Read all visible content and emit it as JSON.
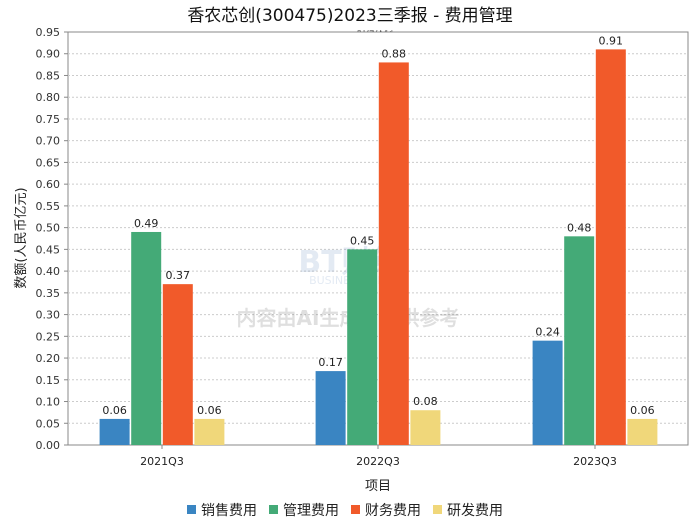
{
  "chart_data": {
    "type": "bar",
    "title": "香农芯创(300475)2023三季报 - 费用管理",
    "subtitle": "Q1-Q3 - BT财经绘制",
    "xlabel": "项目",
    "ylabel": "数额(人民币亿元)",
    "categories": [
      "2021Q3",
      "2022Q3",
      "2023Q3"
    ],
    "ylim": [
      0,
      0.95
    ],
    "yticks": [
      "0.00",
      "0.05",
      "0.10",
      "0.15",
      "0.20",
      "0.25",
      "0.30",
      "0.35",
      "0.40",
      "0.45",
      "0.50",
      "0.55",
      "0.60",
      "0.65",
      "0.70",
      "0.75",
      "0.80",
      "0.85",
      "0.90",
      "0.95"
    ],
    "grid": true,
    "legend_position": "bottom",
    "series": [
      {
        "name": "销售费用",
        "color": "#3a85c2",
        "values": [
          0.06,
          0.17,
          0.24
        ],
        "labels": [
          "0.06",
          "0.17",
          "0.24"
        ]
      },
      {
        "name": "管理费用",
        "color": "#44aa77",
        "values": [
          0.49,
          0.45,
          0.48
        ],
        "labels": [
          "0.49",
          "0.45",
          "0.48"
        ]
      },
      {
        "name": "财务费用",
        "color": "#f15a2a",
        "values": [
          0.37,
          0.88,
          0.91
        ],
        "labels": [
          "0.37",
          "0.88",
          "0.91"
        ]
      },
      {
        "name": "研发费用",
        "color": "#f0d77a",
        "values": [
          0.06,
          0.08,
          0.06
        ],
        "labels": [
          "0.06",
          "0.08",
          "0.06"
        ]
      }
    ]
  },
  "watermark": {
    "logo": "BT财经",
    "logo_sub": "BUSINESS TIMES",
    "notice": "内容由AI生成，仅供参考"
  }
}
